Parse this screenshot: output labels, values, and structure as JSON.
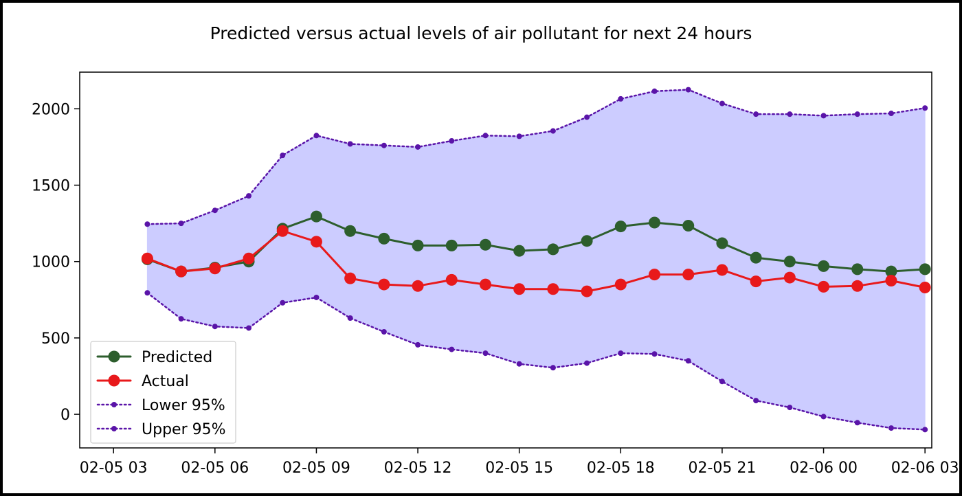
{
  "chart_data": {
    "type": "line",
    "title": "Predicted versus actual levels of air pollutant for next 24 hours",
    "xlabel": "",
    "ylabel": "",
    "x": [
      "02-05 04",
      "02-05 05",
      "02-05 06",
      "02-05 07",
      "02-05 08",
      "02-05 09",
      "02-05 10",
      "02-05 11",
      "02-05 12",
      "02-05 13",
      "02-05 14",
      "02-05 15",
      "02-05 16",
      "02-05 17",
      "02-05 18",
      "02-05 19",
      "02-05 20",
      "02-05 21",
      "02-05 22",
      "02-05 23",
      "02-06 00",
      "02-06 01",
      "02-06 02",
      "02-06 03"
    ],
    "x_ticks": [
      "02-05 03",
      "02-05 06",
      "02-05 09",
      "02-05 12",
      "02-05 15",
      "02-05 18",
      "02-05 21",
      "02-06 00",
      "02-06 03"
    ],
    "y_ticks": [
      0,
      500,
      1000,
      1500,
      2000
    ],
    "ylim": [
      -220,
      2240
    ],
    "xlim_hours": [
      2.0,
      27.2
    ],
    "grid": false,
    "legend_position": "lower-left",
    "series": [
      {
        "name": "Predicted",
        "color": "#2d5e2d",
        "style": "solid-marker",
        "values": [
          1015,
          935,
          960,
          1000,
          1215,
          1295,
          1200,
          1150,
          1105,
          1105,
          1110,
          1070,
          1080,
          1135,
          1230,
          1255,
          1235,
          1120,
          1025,
          1000,
          970,
          950,
          935,
          950
        ]
      },
      {
        "name": "Actual",
        "color": "#e8191b",
        "style": "solid-marker",
        "values": [
          1020,
          935,
          955,
          1020,
          1200,
          1130,
          890,
          850,
          840,
          880,
          850,
          820,
          820,
          805,
          850,
          915,
          915,
          945,
          870,
          895,
          835,
          840,
          875,
          830
        ]
      },
      {
        "name": "Lower 95%",
        "color": "#5a14a8",
        "style": "dotted",
        "values": [
          795,
          625,
          575,
          565,
          730,
          765,
          630,
          540,
          455,
          425,
          400,
          330,
          305,
          335,
          400,
          395,
          350,
          215,
          90,
          45,
          -15,
          -55,
          -90,
          -100
        ]
      },
      {
        "name": "Upper 95%",
        "color": "#5a14a8",
        "style": "dotted",
        "values": [
          1245,
          1250,
          1335,
          1430,
          1695,
          1825,
          1770,
          1760,
          1750,
          1790,
          1825,
          1820,
          1855,
          1945,
          2065,
          2115,
          2125,
          2035,
          1965,
          1965,
          1955,
          1965,
          1970,
          2005
        ]
      }
    ],
    "band_fill_color": "#ccccff"
  }
}
